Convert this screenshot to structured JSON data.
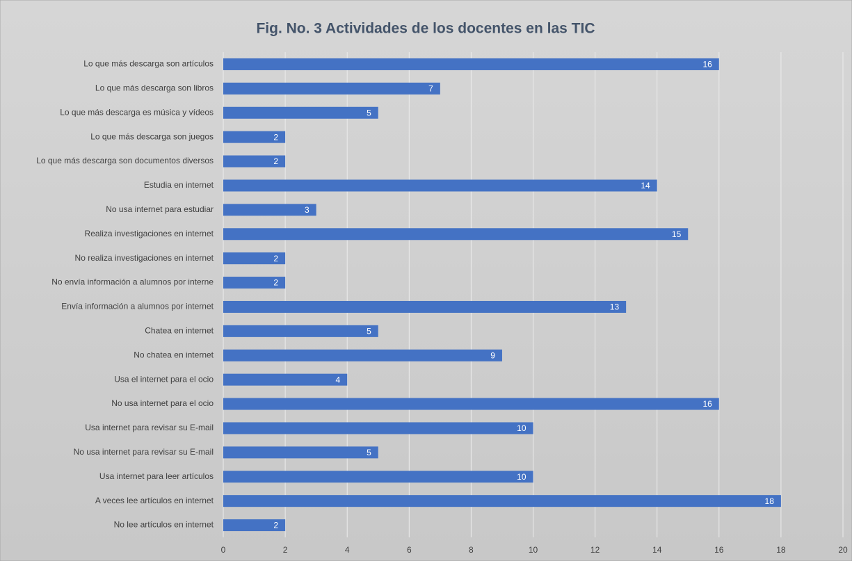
{
  "chart_data": {
    "type": "barh",
    "title": "Fig. No. 3 Actividades de los docentes en las TIC",
    "categories": [
      "Lo que más descarga son artículos",
      "Lo que más descarga son libros",
      "Lo que más descarga es música y vídeos",
      "Lo que más descarga son juegos",
      "Lo que más descarga son documentos diversos",
      "Estudia en internet",
      "No usa internet para estudiar",
      "Realiza investigaciones en internet",
      "No realiza investigaciones en internet",
      "No envía información a alumnos por interne",
      "Envía información a alumnos por internet",
      "Chatea en internet",
      "No chatea en internet",
      "Usa el internet para el ocio",
      "No usa internet para el ocio",
      "Usa internet para revisar su E-mail",
      "No usa internet para revisar su E-mail",
      "Usa internet para leer artículos",
      "A veces lee artículos en  internet",
      "No lee artículos en internet"
    ],
    "values": [
      16,
      7,
      5,
      2,
      2,
      14,
      3,
      15,
      2,
      2,
      13,
      5,
      9,
      4,
      16,
      10,
      5,
      10,
      18,
      2
    ],
    "color": "#4472c4",
    "xlim": [
      0,
      20
    ],
    "xticks": [
      0,
      2,
      4,
      6,
      8,
      10,
      12,
      14,
      16,
      18,
      20
    ],
    "grid": true
  }
}
